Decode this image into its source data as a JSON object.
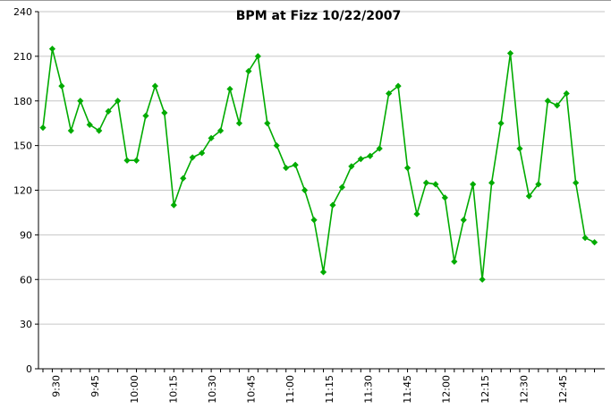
{
  "chart_data": {
    "type": "line",
    "title": "BPM at Fizz 10/22/2007",
    "xlabel": "",
    "ylabel": "",
    "ylim": [
      0,
      240
    ],
    "y_ticks": [
      0,
      30,
      60,
      90,
      120,
      150,
      180,
      210,
      240
    ],
    "y_tick_labels": [
      "0",
      "30",
      "60",
      "90",
      "120",
      "150",
      "180",
      "210",
      "240"
    ],
    "x_labels": [
      "9:30",
      "9:45",
      "10:00",
      "10:15",
      "10:30",
      "10:45",
      "11:00",
      "11:15",
      "11:30",
      "11:45",
      "12:00",
      "12:15",
      "12:30",
      "12:45"
    ],
    "x_label_positions": [
      1.4,
      5.57,
      9.74,
      13.91,
      18.08,
      22.25,
      26.42,
      30.6,
      34.77,
      38.94,
      43.11,
      47.28,
      51.45,
      55.62
    ],
    "values": [
      162,
      215,
      190,
      160,
      180,
      164,
      160,
      173,
      180,
      140,
      140,
      170,
      190,
      172,
      110,
      128,
      142,
      145,
      155,
      160,
      188,
      165,
      200,
      210,
      165,
      150,
      135,
      137,
      120,
      100,
      65,
      110,
      122,
      136,
      141,
      143,
      148,
      185,
      190,
      135,
      104,
      125,
      124,
      115,
      72,
      100,
      124,
      60,
      125,
      165,
      212,
      148,
      116,
      124,
      180,
      177,
      185,
      125,
      88,
      85
    ],
    "marker": "diamond",
    "grid": "horizontal",
    "legend": "none",
    "line_color": "#00ab00",
    "marker_color": "#00ab00",
    "grid_color": "#c6c6c6",
    "axis_color": "#000000",
    "background_color": "#ffffff"
  }
}
